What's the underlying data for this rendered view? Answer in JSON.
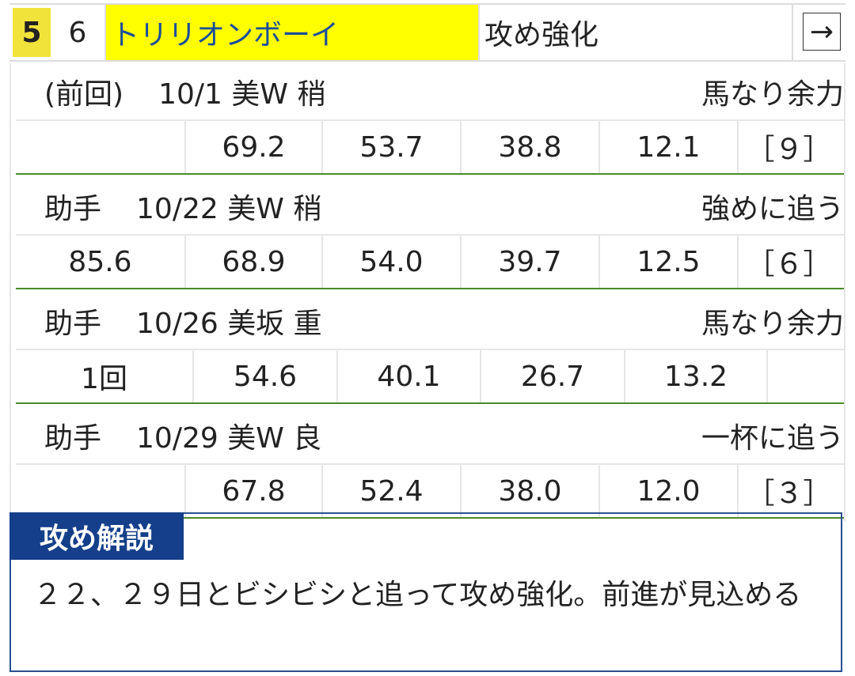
{
  "header": {
    "frame_number": "5",
    "horse_number": "6",
    "horse_name": "トリリオンボーイ",
    "evaluation": "攻め強化",
    "link": "→"
  },
  "workouts": [
    {
      "rider": "(前回)",
      "session": "10/1 美W 稍",
      "manner": "馬なり余力",
      "times": [
        null,
        "69.2",
        "53.7",
        "38.8",
        "12.1",
        "［９］"
      ]
    },
    {
      "rider": "助手",
      "session": "10/22 美W 稍",
      "manner": "強めに追う",
      "times": [
        "85.6",
        "68.9",
        "54.0",
        "39.7",
        "12.5",
        "［６］"
      ]
    },
    {
      "rider": "助手",
      "session": "10/26 美坂 重",
      "manner": "馬なり余力",
      "times": [
        "1回",
        "54.6",
        "40.1",
        "26.7",
        "13.2",
        null
      ]
    },
    {
      "rider": "助手",
      "session": "10/29 美W 良",
      "manner": "一杯に追う",
      "times": [
        null,
        "67.8",
        "52.4",
        "38.0",
        "12.0",
        "［３］"
      ]
    }
  ],
  "commentary": {
    "title": "攻め解説",
    "text": "２２、２９日とビシビシと追って攻め強化。前進が見込める"
  }
}
